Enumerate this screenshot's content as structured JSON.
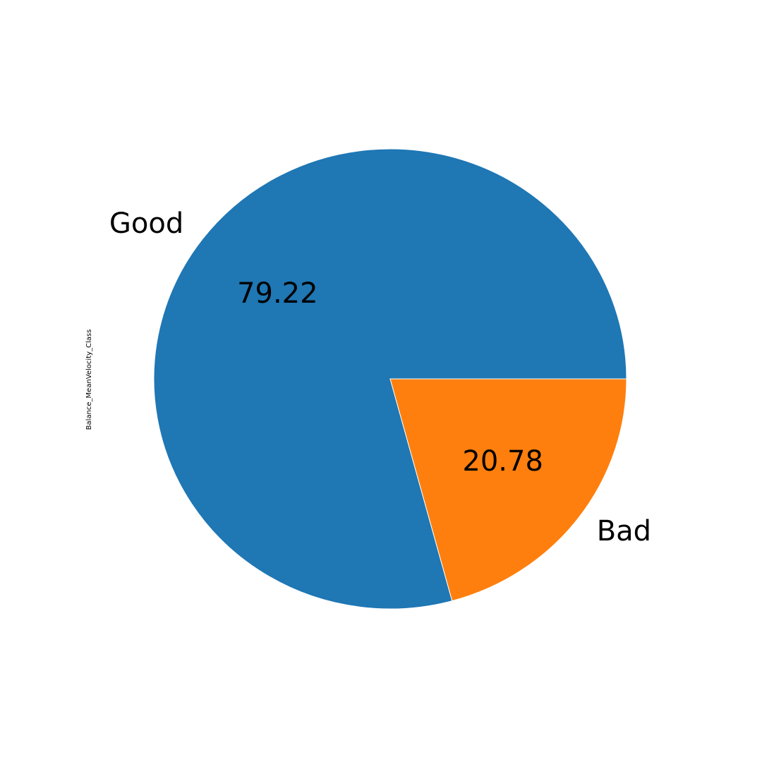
{
  "chart_data": {
    "type": "pie",
    "ylabel": "Balance_MeanVelocity_Class",
    "slices": [
      {
        "label": "Good",
        "value": 79.22,
        "value_label": "79.22",
        "color": "#1f77b4"
      },
      {
        "label": "Bad",
        "value": 20.78,
        "value_label": "20.78",
        "color": "#ff7f0e"
      }
    ],
    "start_angle_deg": 0,
    "direction": "counterclockwise"
  }
}
